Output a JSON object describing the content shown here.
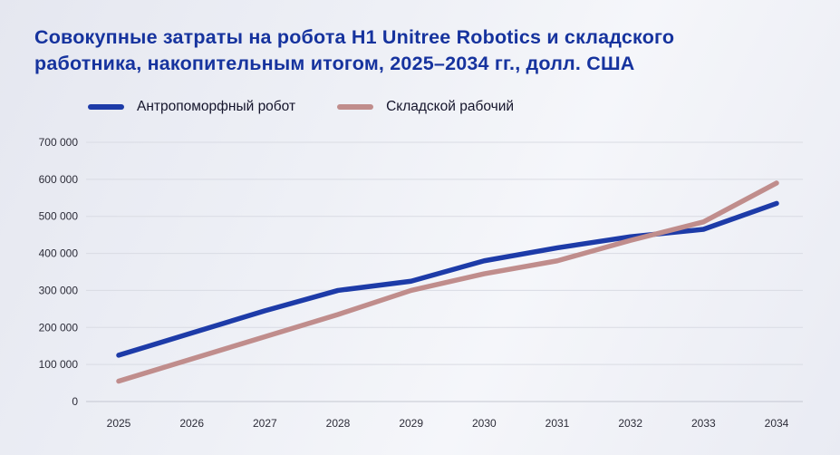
{
  "title_lines": [
    "Совокупные затраты на робота H1 Unitree Robotics и складского",
    "работника, накопительным итогом, 2025–2034 гг., долл. США"
  ],
  "colors": {
    "title": "#16339e",
    "robot_line": "#1d3ba8",
    "worker_line": "#c08d8c",
    "grid": "#d9dbe3",
    "axis": "#c4c7d1",
    "tick_text": "#2c2c38",
    "background": "#edeff5"
  },
  "chart_data": {
    "type": "line",
    "title": "Совокупные затраты на робота H1 Unitree Robotics и складского работника, накопительным итогом, 2025–2034 гг., долл. США",
    "x": [
      2025,
      2026,
      2027,
      2028,
      2029,
      2030,
      2031,
      2032,
      2033,
      2034
    ],
    "series": [
      {
        "key": "robot",
        "name": "Антропоморфный робот",
        "color": "#1d3ba8",
        "values": [
          125000,
          185000,
          245000,
          300000,
          325000,
          380000,
          415000,
          445000,
          465000,
          535000
        ]
      },
      {
        "key": "worker",
        "name": "Складской рабочий",
        "color": "#c08d8c",
        "values": [
          55000,
          115000,
          175000,
          235000,
          300000,
          345000,
          380000,
          435000,
          485000,
          590000
        ]
      }
    ],
    "ylim": [
      0,
      700000
    ],
    "yticks": [
      0,
      100000,
      200000,
      300000,
      400000,
      500000,
      600000,
      700000
    ],
    "ytick_labels": [
      "0",
      "100 000",
      "200 000",
      "300 000",
      "400 000",
      "500 000",
      "600 000",
      "700 000"
    ],
    "xlabel": "",
    "ylabel": "",
    "grid": true,
    "legend_position": "top-left"
  }
}
